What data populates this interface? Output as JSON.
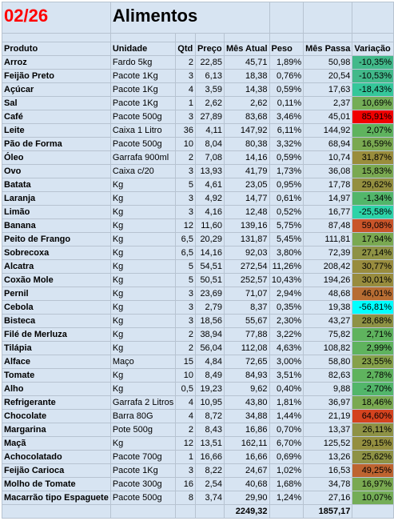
{
  "sheet": {
    "month": "02/26",
    "title": "Alimentos",
    "headers": [
      "Produto",
      "Unidade",
      "Qtd",
      "Preço",
      "Mês Atual",
      "Peso",
      "Mês Passa",
      "Variação"
    ],
    "rows": [
      {
        "produto": "Arroz",
        "unidade": "Fardo 5kg",
        "qtd": "2",
        "preco": "22,85",
        "mes_atual": "45,71",
        "peso": "1,89%",
        "mes_passado": "50,98",
        "variacao": "-10,35%",
        "color": "#42b98a"
      },
      {
        "produto": "Feijão Preto",
        "unidade": "Pacote 1Kg",
        "qtd": "3",
        "preco": "6,13",
        "mes_atual": "18,38",
        "peso": "0,76%",
        "mes_passado": "20,54",
        "variacao": "-10,53%",
        "color": "#42b98a"
      },
      {
        "produto": "Açúcar",
        "unidade": "Pacote 1Kg",
        "qtd": "4",
        "preco": "3,59",
        "mes_atual": "14,38",
        "peso": "0,59%",
        "mes_passado": "17,63",
        "variacao": "-18,43%",
        "color": "#35c79a"
      },
      {
        "produto": "Sal",
        "unidade": "Pacote 1Kg",
        "qtd": "1",
        "preco": "2,62",
        "mes_atual": "2,62",
        "peso": "0,11%",
        "mes_passado": "2,37",
        "variacao": "10,69%",
        "color": "#74ad57"
      },
      {
        "produto": "Café",
        "unidade": "Pacote 500g",
        "qtd": "3",
        "preco": "27,89",
        "mes_atual": "83,68",
        "peso": "3,46%",
        "mes_passado": "45,01",
        "variacao": "85,91%",
        "color": "#f00000"
      },
      {
        "produto": "Leite",
        "unidade": "Caixa 1 Litro",
        "qtd": "36",
        "preco": "4,11",
        "mes_atual": "147,92",
        "peso": "6,11%",
        "mes_passado": "144,92",
        "variacao": "2,07%",
        "color": "#5fb35e"
      },
      {
        "produto": "Pão de Forma",
        "unidade": "Pacote 500g",
        "qtd": "10",
        "preco": "8,04",
        "mes_atual": "80,38",
        "peso": "3,32%",
        "mes_passado": "68,94",
        "variacao": "16,59%",
        "color": "#7aa951"
      },
      {
        "produto": "Óleo",
        "unidade": "Garrafa 900ml",
        "qtd": "2",
        "preco": "7,08",
        "mes_atual": "14,16",
        "peso": "0,59%",
        "mes_passado": "10,74",
        "variacao": "31,87%",
        "color": "#9a8d3c"
      },
      {
        "produto": "Ovo",
        "unidade": "Caixa c/20",
        "qtd": "3",
        "preco": "13,93",
        "mes_atual": "41,79",
        "peso": "1,73%",
        "mes_passado": "36,08",
        "variacao": "15,83%",
        "color": "#7aa951"
      },
      {
        "produto": "Batata",
        "unidade": "Kg",
        "qtd": "5",
        "preco": "4,61",
        "mes_atual": "23,05",
        "peso": "0,95%",
        "mes_passado": "17,78",
        "variacao": "29,62%",
        "color": "#948f40"
      },
      {
        "produto": "Laranja",
        "unidade": "Kg",
        "qtd": "3",
        "preco": "4,92",
        "mes_atual": "14,77",
        "peso": "0,61%",
        "mes_passado": "14,97",
        "variacao": "-1,34%",
        "color": "#52b66a"
      },
      {
        "produto": "Limão",
        "unidade": "Kg",
        "qtd": "3",
        "preco": "4,16",
        "mes_atual": "12,48",
        "peso": "0,52%",
        "mes_passado": "16,77",
        "variacao": "-25,58%",
        "color": "#2dd3a8"
      },
      {
        "produto": "Banana",
        "unidade": "Kg",
        "qtd": "12",
        "preco": "11,60",
        "mes_atual": "139,16",
        "peso": "5,75%",
        "mes_passado": "87,48",
        "variacao": "59,08%",
        "color": "#c9552a"
      },
      {
        "produto": "Peito de Frango",
        "unidade": "Kg",
        "qtd": "6,5",
        "preco": "20,29",
        "mes_atual": "131,87",
        "peso": "5,45%",
        "mes_passado": "111,81",
        "variacao": "17,94%",
        "color": "#7aa951"
      },
      {
        "produto": "Sobrecoxa",
        "unidade": "Kg",
        "qtd": "6,5",
        "preco": "14,16",
        "mes_atual": "92,03",
        "peso": "3,80%",
        "mes_passado": "72,39",
        "variacao": "27,14%",
        "color": "#8e9245"
      },
      {
        "produto": "Alcatra",
        "unidade": "Kg",
        "qtd": "5",
        "preco": "54,51",
        "mes_atual": "272,54",
        "peso": "11,26%",
        "mes_passado": "208,42",
        "variacao": "30,77%",
        "color": "#988c3e"
      },
      {
        "produto": "Coxão Mole",
        "unidade": "Kg",
        "qtd": "5",
        "preco": "50,51",
        "mes_atual": "252,57",
        "peso": "10,43%",
        "mes_passado": "194,26",
        "variacao": "30,01%",
        "color": "#988c3e"
      },
      {
        "produto": "Pernil",
        "unidade": "Kg",
        "qtd": "3",
        "preco": "23,69",
        "mes_atual": "71,07",
        "peso": "2,94%",
        "mes_passado": "48,68",
        "variacao": "46,01%",
        "color": "#b76d33"
      },
      {
        "produto": "Cebola",
        "unidade": "Kg",
        "qtd": "3",
        "preco": "2,79",
        "mes_atual": "8,37",
        "peso": "0,35%",
        "mes_passado": "19,38",
        "variacao": "-56,81%",
        "color": "#00ffff"
      },
      {
        "produto": "Bisteca",
        "unidade": "Kg",
        "qtd": "3",
        "preco": "18,56",
        "mes_atual": "55,67",
        "peso": "2,30%",
        "mes_passado": "43,27",
        "variacao": "28,68%",
        "color": "#8e9245"
      },
      {
        "produto": "Filé de Merluza",
        "unidade": "Kg",
        "qtd": "2",
        "preco": "38,94",
        "mes_atual": "77,88",
        "peso": "3,22%",
        "mes_passado": "75,82",
        "variacao": "2,71%",
        "color": "#5fb35e"
      },
      {
        "produto": "Tilápia",
        "unidade": "Kg",
        "qtd": "2",
        "preco": "56,04",
        "mes_atual": "112,08",
        "peso": "4,63%",
        "mes_passado": "108,82",
        "variacao": "2,99%",
        "color": "#5fb35e"
      },
      {
        "produto": "Alface",
        "unidade": "Maço",
        "qtd": "15",
        "preco": "4,84",
        "mes_atual": "72,65",
        "peso": "3,00%",
        "mes_passado": "58,80",
        "variacao": "23,55%",
        "color": "#86a14a"
      },
      {
        "produto": "Tomate",
        "unidade": "Kg",
        "qtd": "10",
        "preco": "8,49",
        "mes_atual": "84,93",
        "peso": "3,51%",
        "mes_passado": "82,63",
        "variacao": "2,78%",
        "color": "#5fb35e"
      },
      {
        "produto": "Alho",
        "unidade": "Kg",
        "qtd": "0,5",
        "preco": "19,23",
        "mes_atual": "9,62",
        "peso": "0,40%",
        "mes_passado": "9,88",
        "variacao": "-2,70%",
        "color": "#52b66a"
      },
      {
        "produto": "Refrigerante",
        "unidade": "Garrafa 2 Litros",
        "qtd": "4",
        "preco": "10,95",
        "mes_atual": "43,80",
        "peso": "1,81%",
        "mes_passado": "36,97",
        "variacao": "18,46%",
        "color": "#7aa951"
      },
      {
        "produto": "Chocolate",
        "unidade": "Barra 80G",
        "qtd": "4",
        "preco": "8,72",
        "mes_atual": "34,88",
        "peso": "1,44%",
        "mes_passado": "21,19",
        "variacao": "64,60%",
        "color": "#d4431f"
      },
      {
        "produto": "Margarina",
        "unidade": "Pote 500g",
        "qtd": "2",
        "preco": "8,43",
        "mes_atual": "16,86",
        "peso": "0,70%",
        "mes_passado": "13,37",
        "variacao": "26,11%",
        "color": "#8e9245"
      },
      {
        "produto": "Maçã",
        "unidade": "Kg",
        "qtd": "12",
        "preco": "13,51",
        "mes_atual": "162,11",
        "peso": "6,70%",
        "mes_passado": "125,52",
        "variacao": "29,15%",
        "color": "#948f40"
      },
      {
        "produto": "Achocolatado",
        "unidade": "Pacote 700g",
        "qtd": "1",
        "preco": "16,66",
        "mes_atual": "16,66",
        "peso": "0,69%",
        "mes_passado": "13,26",
        "variacao": "25,62%",
        "color": "#8e9245"
      },
      {
        "produto": "Feijão Carioca",
        "unidade": "Pacote 1Kg",
        "qtd": "3",
        "preco": "8,22",
        "mes_atual": "24,67",
        "peso": "1,02%",
        "mes_passado": "16,53",
        "variacao": "49,25%",
        "color": "#be6430"
      },
      {
        "produto": "Molho de Tomate",
        "unidade": "Pacote 300g",
        "qtd": "16",
        "preco": "2,54",
        "mes_atual": "40,68",
        "peso": "1,68%",
        "mes_passado": "34,78",
        "variacao": "16,97%",
        "color": "#7aa951"
      },
      {
        "produto": "Macarrão tipo Espaguete",
        "unidade": "Pacote 500g",
        "qtd": "8",
        "preco": "3,74",
        "mes_atual": "29,90",
        "peso": "1,24%",
        "mes_passado": "27,16",
        "variacao": "10,07%",
        "color": "#74ad57"
      }
    ],
    "totals": {
      "mes_atual": "2249,32",
      "mes_passado": "1857,17"
    }
  }
}
